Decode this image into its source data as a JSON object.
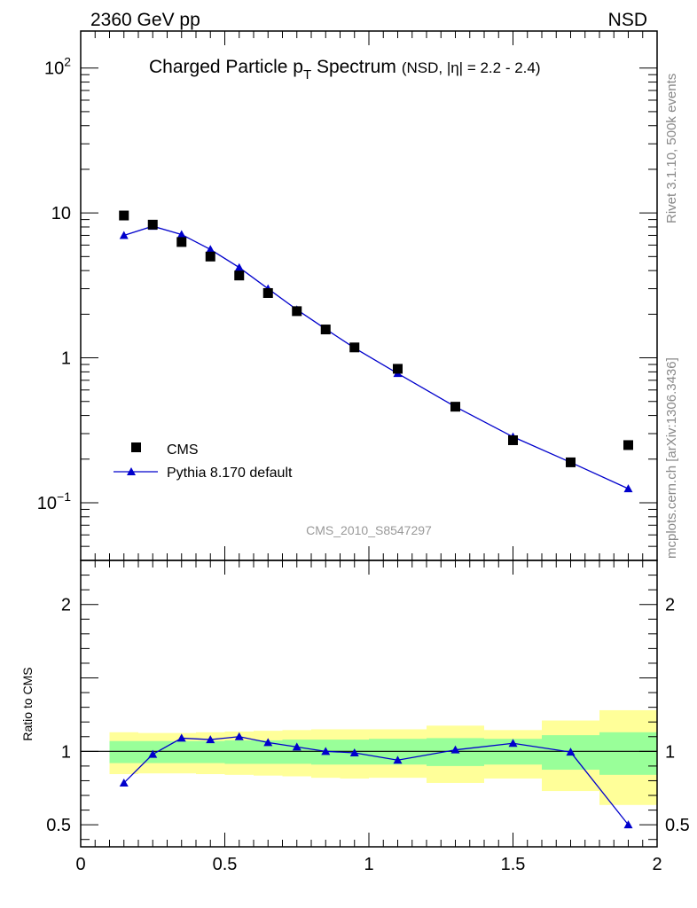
{
  "header": {
    "left": "2360 GeV pp",
    "right": "NSD"
  },
  "title": {
    "main": "Charged Particle p",
    "sub": "T",
    "rest": " Spectrum",
    "small": "(NSD, |η| = 2.2 - 2.4)"
  },
  "side_labels": {
    "rivet": "Rivet 3.1.10,  500k events",
    "mcplots": "mcplots.cern.ch [arXiv:1306.3436]"
  },
  "analysis_id": "CMS_2010_S8547297",
  "colors": {
    "mc": "#0000cc",
    "band_inner": "#99ff99",
    "band_outer": "#ffff99",
    "data": "#000000"
  },
  "chart_data": [
    {
      "type": "scatter",
      "panel": "main",
      "yscale": "log",
      "ylim": [
        0.04,
        180
      ],
      "xlim": [
        0,
        2
      ],
      "yticks": [
        {
          "value": 0.1,
          "base": "10",
          "exp": "−1"
        },
        {
          "value": 1,
          "base": "1",
          "exp": ""
        },
        {
          "value": 10,
          "base": "10",
          "exp": ""
        },
        {
          "value": 100,
          "base": "10",
          "exp": "2"
        }
      ],
      "legend_position": "bottom-left",
      "series": [
        {
          "name": "CMS",
          "marker": "square",
          "x": [
            0.15,
            0.25,
            0.35,
            0.45,
            0.55,
            0.65,
            0.75,
            0.85,
            0.95,
            1.1,
            1.3,
            1.5,
            1.7,
            1.9
          ],
          "values": [
            9.6,
            8.3,
            6.3,
            5.0,
            3.7,
            2.8,
            2.1,
            1.57,
            1.18,
            0.84,
            0.46,
            0.27,
            0.19,
            0.25
          ]
        },
        {
          "name": "Pythia 8.170 default",
          "marker": "triangle",
          "x": [
            0.15,
            0.25,
            0.35,
            0.45,
            0.55,
            0.65,
            0.75,
            0.85,
            0.95,
            1.1,
            1.3,
            1.5,
            1.7,
            1.9
          ],
          "values": [
            7.0,
            8.1,
            7.1,
            5.6,
            4.2,
            3.0,
            2.15,
            1.58,
            1.17,
            0.78,
            0.46,
            0.285,
            0.19,
            0.125
          ]
        }
      ]
    },
    {
      "type": "line",
      "panel": "ratio",
      "ylabel": "Ratio to CMS",
      "ylim": [
        0.35,
        2.3
      ],
      "xlim": [
        0,
        2
      ],
      "yticks": [
        0.5,
        1,
        2
      ],
      "ytick_labels": [
        "0.5",
        "1",
        "2"
      ],
      "xticks": [
        0,
        0.5,
        1,
        1.5,
        2
      ],
      "xtick_labels": [
        "0",
        "0.5",
        "1",
        "1.5",
        "2"
      ],
      "reference": 1,
      "bands": {
        "bin_edges": [
          0.1,
          0.2,
          0.3,
          0.4,
          0.5,
          0.6,
          0.7,
          0.8,
          0.9,
          1.0,
          1.2,
          1.4,
          1.6,
          1.8,
          2.0
        ],
        "inner_low": [
          0.92,
          0.92,
          0.92,
          0.92,
          0.915,
          0.915,
          0.915,
          0.91,
          0.91,
          0.91,
          0.9,
          0.91,
          0.875,
          0.84
        ],
        "inner_high": [
          1.07,
          1.07,
          1.07,
          1.07,
          1.075,
          1.075,
          1.08,
          1.08,
          1.08,
          1.085,
          1.09,
          1.085,
          1.11,
          1.13
        ],
        "outer_low": [
          0.845,
          0.85,
          0.85,
          0.845,
          0.84,
          0.835,
          0.83,
          0.82,
          0.815,
          0.82,
          0.785,
          0.815,
          0.73,
          0.635
        ],
        "outer_high": [
          1.13,
          1.125,
          1.125,
          1.13,
          1.135,
          1.14,
          1.145,
          1.15,
          1.15,
          1.15,
          1.175,
          1.145,
          1.21,
          1.28
        ]
      },
      "series": [
        {
          "name": "Pythia 8.170 default / CMS",
          "x": [
            0.15,
            0.25,
            0.35,
            0.45,
            0.55,
            0.65,
            0.75,
            0.85,
            0.95,
            1.1,
            1.3,
            1.5,
            1.7,
            1.9
          ],
          "values": [
            0.785,
            0.98,
            1.09,
            1.08,
            1.1,
            1.06,
            1.03,
            1.0,
            0.99,
            0.94,
            1.01,
            1.055,
            0.995,
            0.5
          ]
        }
      ]
    }
  ]
}
